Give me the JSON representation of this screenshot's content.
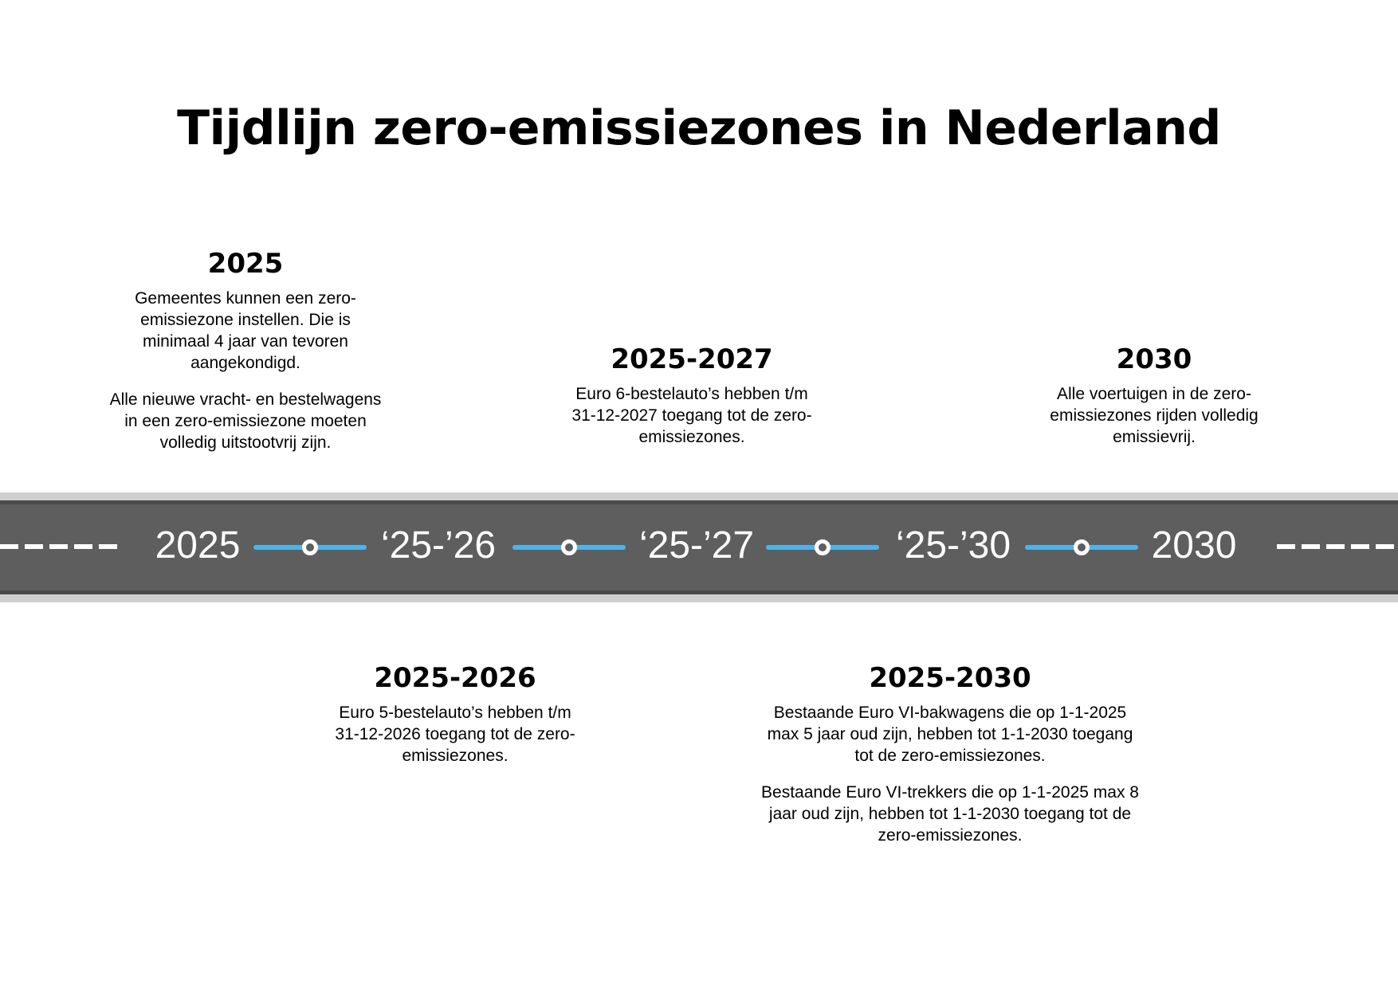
{
  "title": "Tijdlijn zero-emissiezones in Nederland",
  "events": [
    {
      "year": "2025",
      "paragraphs": [
        "Gemeentes kunnen een zero-emissiezone instellen. Die is minimaal 4 jaar van tevoren aangekondigd.",
        "Alle nieuwe vracht- en bestelwagens in een zero-emissiezone moeten volledig uitstootvrij zijn."
      ]
    },
    {
      "year": "2025-2026",
      "paragraphs": [
        "Euro 5-bestelauto’s hebben t/m 31-12-2026 toegang tot de zero-emissiezones."
      ]
    },
    {
      "year": "2025-2027",
      "paragraphs": [
        "Euro 6-bestelauto’s hebben t/m 31-12-2027 toegang tot de zero-emissiezones."
      ]
    },
    {
      "year": "2025-2030",
      "paragraphs": [
        "Bestaande Euro VI-bakwagens die op 1-1-2025 max 5 jaar oud zijn, hebben tot 1-1-2030 toegang tot de zero-emissiezones.",
        "Bestaande Euro VI-trekkers die op 1-1-2025 max 8 jaar oud zijn, hebben tot 1-1-2030 toegang tot de zero-emissiezones."
      ]
    },
    {
      "year": "2030",
      "paragraphs": [
        "Alle voertuigen in de zero-emissiezones rijden volledig emissievrij."
      ]
    }
  ],
  "road_labels": [
    "2025",
    "‘25-’26",
    "‘25-’27",
    "‘25-’30",
    "2030"
  ],
  "colors": {
    "road": "#5e5e5e",
    "road_edge": "#cfcfcf",
    "connector": "#4fb3e8",
    "label": "#ffffff"
  }
}
